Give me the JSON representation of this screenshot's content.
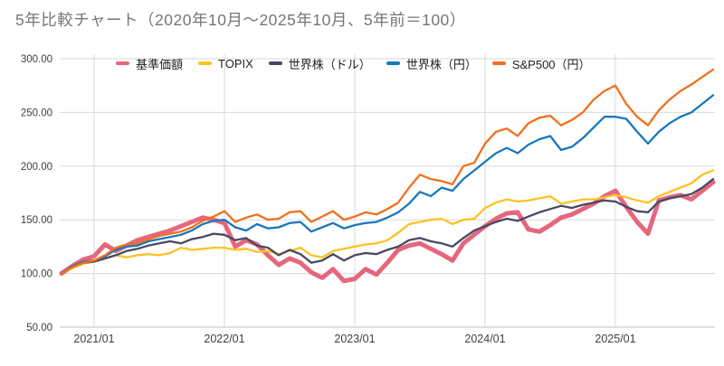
{
  "title": "5年比較チャート（2020年10月〜2025年10月、5年前＝100）",
  "colors": {
    "grid": "#d9d9d9",
    "axis": "#c0c0c0",
    "title_text": "#767676",
    "tick_text": "#3f3f3f"
  },
  "chart_data": {
    "type": "line",
    "title": "5年比較チャート（2020年10月〜2025年10月、5年前＝100）",
    "xlabel": "",
    "ylabel": "",
    "ylim": [
      50,
      300
    ],
    "grid": true,
    "legend_position": "top",
    "baseline_note": "5年前＝100",
    "y_ticks": [
      {
        "value": 300,
        "label": "300.00"
      },
      {
        "value": 250,
        "label": "250.00"
      },
      {
        "value": 200,
        "label": "200.00"
      },
      {
        "value": 150,
        "label": "150.00"
      },
      {
        "value": 100,
        "label": "100.00"
      },
      {
        "value": 50,
        "label": "50.00"
      }
    ],
    "x_ticks": [
      {
        "index": 3,
        "label": "2021/01"
      },
      {
        "index": 15,
        "label": "2022/01"
      },
      {
        "index": 27,
        "label": "2023/01"
      },
      {
        "index": 39,
        "label": "2024/01"
      },
      {
        "index": 51,
        "label": "2025/01"
      }
    ],
    "x": [
      "2020/10",
      "2020/11",
      "2020/12",
      "2021/01",
      "2021/02",
      "2021/03",
      "2021/04",
      "2021/05",
      "2021/06",
      "2021/07",
      "2021/08",
      "2021/09",
      "2021/10",
      "2021/11",
      "2021/12",
      "2022/01",
      "2022/02",
      "2022/03",
      "2022/04",
      "2022/05",
      "2022/06",
      "2022/07",
      "2022/08",
      "2022/09",
      "2022/10",
      "2022/11",
      "2022/12",
      "2023/01",
      "2023/02",
      "2023/03",
      "2023/04",
      "2023/05",
      "2023/06",
      "2023/07",
      "2023/08",
      "2023/09",
      "2023/10",
      "2023/11",
      "2023/12",
      "2024/01",
      "2024/02",
      "2024/03",
      "2024/04",
      "2024/05",
      "2024/06",
      "2024/07",
      "2024/08",
      "2024/09",
      "2024/10",
      "2024/11",
      "2024/12",
      "2025/01",
      "2025/02",
      "2025/03",
      "2025/04",
      "2025/05",
      "2025/06",
      "2025/07",
      "2025/08",
      "2025/09",
      "2025/10"
    ],
    "series": [
      {
        "key": "fund",
        "name": "基準価額",
        "color": "#e5677e",
        "stroke_width": 5,
        "values": [
          100,
          107,
          113,
          116,
          127,
          121,
          126,
          131,
          134,
          137,
          140,
          144,
          148,
          152,
          150,
          147,
          125,
          131,
          127,
          117,
          108,
          114,
          110,
          101,
          96,
          104,
          93,
          95,
          104,
          99,
          110,
          122,
          126,
          128,
          123,
          118,
          112,
          128,
          136,
          144,
          151,
          156,
          157,
          141,
          139,
          145,
          152,
          155,
          160,
          165,
          172,
          177,
          162,
          148,
          137,
          168,
          171,
          173,
          169,
          177,
          185
        ]
      },
      {
        "key": "topix",
        "name": "TOPIX",
        "color": "#fdc221",
        "stroke_width": 2.3,
        "values": [
          100,
          105,
          109,
          111,
          114,
          117,
          115,
          117,
          118,
          117,
          119,
          124,
          122,
          123,
          124,
          124,
          122,
          123,
          120,
          121,
          118,
          121,
          124,
          117,
          115,
          121,
          123,
          125,
          127,
          128,
          131,
          138,
          146,
          148,
          150,
          151,
          146,
          150,
          151,
          161,
          166,
          169,
          167,
          168,
          170,
          172,
          165,
          167,
          169,
          169,
          171,
          173,
          171,
          168,
          166,
          172,
          176,
          180,
          184,
          192,
          196
        ]
      },
      {
        "key": "world-usd",
        "name": "世界株（ドル）",
        "color": "#474964",
        "stroke_width": 2.3,
        "values": [
          100,
          106,
          110,
          111,
          114,
          117,
          121,
          123,
          126,
          128,
          130,
          128,
          132,
          134,
          137,
          136,
          131,
          133,
          126,
          124,
          117,
          122,
          118,
          110,
          112,
          118,
          112,
          117,
          119,
          118,
          122,
          125,
          131,
          133,
          130,
          128,
          125,
          133,
          140,
          144,
          148,
          151,
          149,
          153,
          157,
          160,
          163,
          161,
          164,
          166,
          168,
          167,
          162,
          158,
          157,
          167,
          170,
          172,
          174,
          180,
          188
        ]
      },
      {
        "key": "world-jpy",
        "name": "世界株（円）",
        "color": "#1878be",
        "stroke_width": 2.3,
        "values": [
          100,
          107,
          111,
          112,
          116,
          122,
          125,
          126,
          130,
          132,
          134,
          136,
          140,
          146,
          149,
          150,
          143,
          140,
          146,
          142,
          143,
          147,
          148,
          139,
          143,
          147,
          142,
          145,
          147,
          148,
          152,
          157,
          165,
          176,
          172,
          180,
          177,
          188,
          196,
          204,
          212,
          217,
          212,
          220,
          225,
          228,
          215,
          218,
          226,
          236,
          246,
          246,
          244,
          232,
          221,
          232,
          240,
          246,
          250,
          258,
          266
        ]
      },
      {
        "key": "sp500-jpy",
        "name": "S&P500（円）",
        "color": "#f2701d",
        "stroke_width": 2.3,
        "values": [
          100,
          106,
          110,
          112,
          117,
          124,
          127,
          128,
          132,
          135,
          137,
          139,
          143,
          149,
          153,
          158,
          148,
          152,
          155,
          150,
          151,
          157,
          158,
          148,
          153,
          158,
          150,
          153,
          157,
          155,
          160,
          166,
          180,
          192,
          188,
          186,
          183,
          200,
          203,
          221,
          232,
          235,
          228,
          240,
          245,
          247,
          238,
          243,
          250,
          262,
          270,
          275,
          258,
          246,
          238,
          252,
          262,
          270,
          276,
          283,
          290
        ]
      }
    ]
  }
}
